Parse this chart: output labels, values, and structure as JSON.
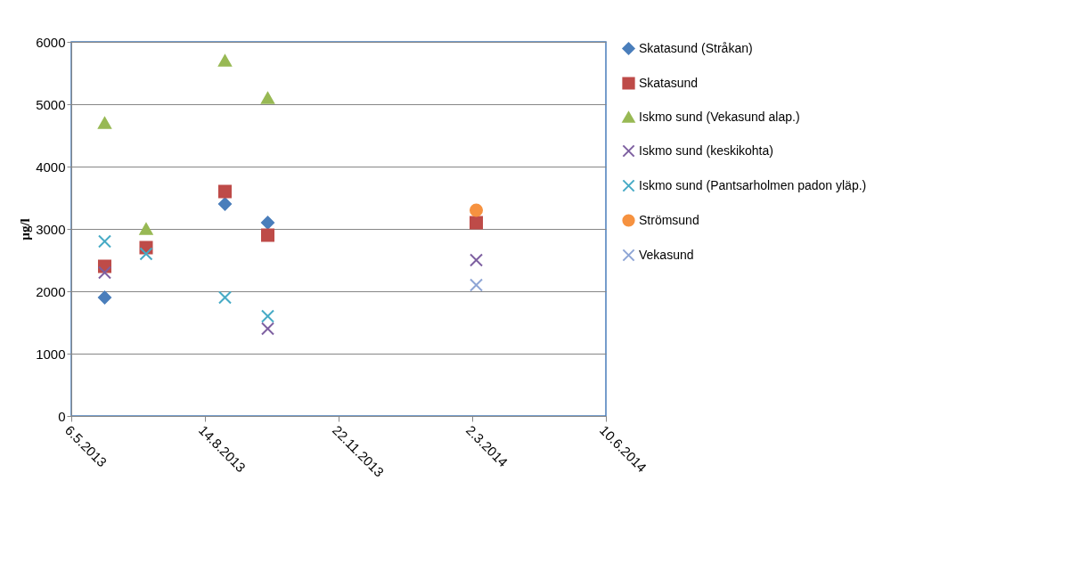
{
  "chart_data": {
    "type": "scatter",
    "ylabel": "µg/l",
    "xlim": [
      "2013-05-06",
      "2014-06-10"
    ],
    "xticks": [
      {
        "value": "2013-05-06",
        "label": "6.5.2013"
      },
      {
        "value": "2013-08-14",
        "label": "14.8.2013"
      },
      {
        "value": "2013-11-22",
        "label": "22.11.2013"
      },
      {
        "value": "2014-03-02",
        "label": "2.3.2014"
      },
      {
        "value": "2014-06-10",
        "label": "10.6.2014"
      }
    ],
    "ylim": [
      0,
      6000
    ],
    "yticks": [
      0,
      1000,
      2000,
      3000,
      4000,
      5000,
      6000
    ],
    "grid": "y",
    "legend": "right",
    "series": [
      {
        "name": "Skatasund (Stråkan)",
        "color": "#4a7ebb",
        "marker": "diamond",
        "x": [
          "2013-05-31",
          "2013-08-29",
          "2013-09-30"
        ],
        "values": [
          1900,
          3400,
          3100
        ]
      },
      {
        "name": "Skatasund",
        "color": "#be4b48",
        "marker": "square",
        "x": [
          "2013-05-31",
          "2013-07-01",
          "2013-08-29",
          "2013-09-30",
          "2014-03-05"
        ],
        "values": [
          2400,
          2700,
          3600,
          2900,
          3100
        ]
      },
      {
        "name": "Iskmo sund (Vekasund alap.)",
        "color": "#98b954",
        "marker": "triangle",
        "x": [
          "2013-05-31",
          "2013-07-01",
          "2013-08-29",
          "2013-09-30"
        ],
        "values": [
          4700,
          3000,
          5700,
          5100
        ]
      },
      {
        "name": "Iskmo sund (keskikohta)",
        "color": "#7d5fa0",
        "marker": "cross",
        "x": [
          "2013-05-31",
          "2013-09-30",
          "2014-03-05"
        ],
        "values": [
          2300,
          1400,
          2500
        ]
      },
      {
        "name": "Iskmo sund (Pantsarholmen padon yläp.)",
        "color": "#46aac5",
        "marker": "cross",
        "x": [
          "2013-05-31",
          "2013-07-01",
          "2013-08-29",
          "2013-09-30"
        ],
        "values": [
          2800,
          2600,
          1900,
          1600
        ]
      },
      {
        "name": "Strömsund",
        "color": "#f69240",
        "marker": "circle",
        "x": [
          "2014-03-05"
        ],
        "values": [
          3300
        ]
      },
      {
        "name": "Vekasund",
        "color": "#8ea5d5",
        "marker": "cross",
        "x": [
          "2014-03-05"
        ],
        "values": [
          2100
        ]
      }
    ]
  }
}
